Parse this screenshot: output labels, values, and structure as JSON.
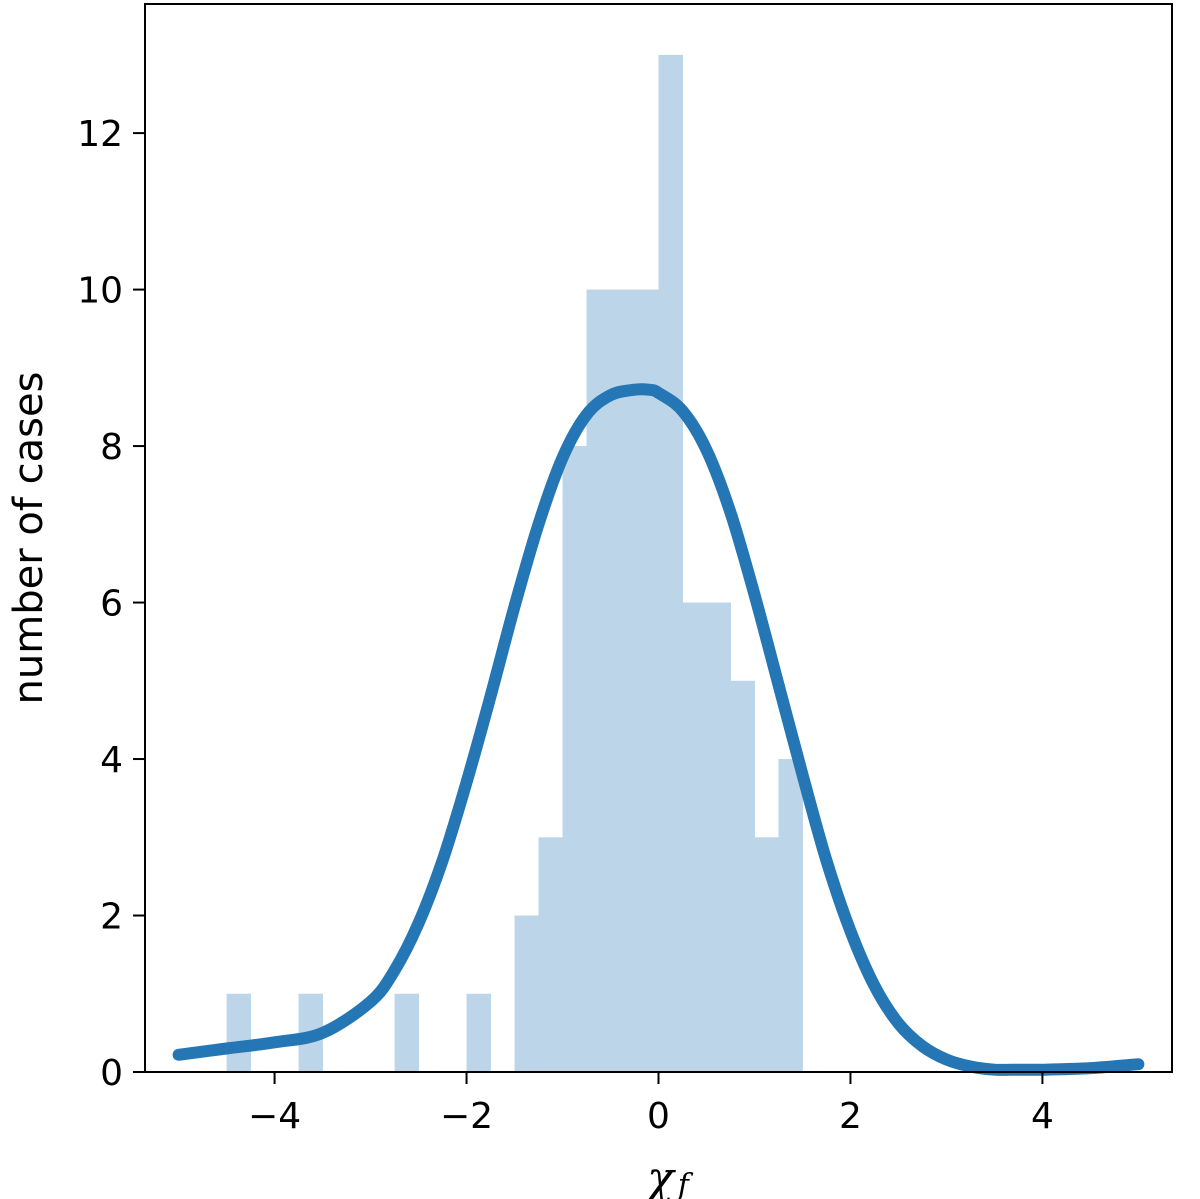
{
  "chart_data": {
    "type": "bar",
    "title": "",
    "xlabel": "χ",
    "xlabel_subscript": "f",
    "ylabel": "number of cases",
    "xlim": [
      -5.35,
      5.35
    ],
    "ylim": [
      0,
      13.65
    ],
    "grid": false,
    "legend": "none",
    "xticks": [
      -4,
      -2,
      0,
      2,
      4
    ],
    "xtick_labels": [
      "−4",
      "−2",
      "0",
      "2",
      "4"
    ],
    "yticks": [
      0,
      2,
      4,
      6,
      8,
      10,
      12
    ],
    "ytick_labels": [
      "0",
      "2",
      "4",
      "6",
      "8",
      "10",
      "12"
    ],
    "bin_width": 0.25,
    "histogram": [
      {
        "x0": -4.5,
        "x1": -4.25,
        "count": 1
      },
      {
        "x0": -3.75,
        "x1": -3.5,
        "count": 1
      },
      {
        "x0": -2.75,
        "x1": -2.5,
        "count": 1
      },
      {
        "x0": -2.0,
        "x1": -1.75,
        "count": 1
      },
      {
        "x0": -1.5,
        "x1": -1.25,
        "count": 2
      },
      {
        "x0": -1.25,
        "x1": -1.0,
        "count": 3
      },
      {
        "x0": -1.0,
        "x1": -0.75,
        "count": 8
      },
      {
        "x0": -0.75,
        "x1": -0.5,
        "count": 10
      },
      {
        "x0": -0.5,
        "x1": -0.25,
        "count": 10
      },
      {
        "x0": -0.25,
        "x1": 0.0,
        "count": 10
      },
      {
        "x0": 0.0,
        "x1": 0.25,
        "count": 13
      },
      {
        "x0": 0.25,
        "x1": 0.5,
        "count": 6
      },
      {
        "x0": 0.5,
        "x1": 0.75,
        "count": 6
      },
      {
        "x0": 0.75,
        "x1": 1.0,
        "count": 5
      },
      {
        "x0": 1.0,
        "x1": 1.25,
        "count": 3
      },
      {
        "x0": 1.25,
        "x1": 1.5,
        "count": 4
      }
    ],
    "curve": {
      "x": [
        -5.0,
        -4.5,
        -4.0,
        -3.5,
        -3.0,
        -2.75,
        -2.5,
        -2.25,
        -2.0,
        -1.75,
        -1.5,
        -1.25,
        -1.0,
        -0.75,
        -0.5,
        -0.25,
        -0.1,
        0.0,
        0.25,
        0.5,
        0.75,
        1.0,
        1.25,
        1.5,
        1.75,
        2.0,
        2.25,
        2.5,
        2.75,
        3.0,
        3.25,
        3.5,
        3.75,
        4.0,
        4.5,
        5.0
      ],
      "y": [
        0.22,
        0.3,
        0.38,
        0.5,
        0.9,
        1.3,
        1.9,
        2.7,
        3.7,
        4.8,
        5.95,
        7.0,
        7.85,
        8.4,
        8.65,
        8.72,
        8.72,
        8.68,
        8.45,
        7.95,
        7.15,
        6.1,
        4.95,
        3.8,
        2.7,
        1.8,
        1.1,
        0.62,
        0.33,
        0.16,
        0.07,
        0.03,
        0.03,
        0.03,
        0.05,
        0.1
      ]
    },
    "colors": {
      "bars": "#bdd5e8",
      "curve": "#2576b4",
      "axes": "#000000"
    }
  }
}
